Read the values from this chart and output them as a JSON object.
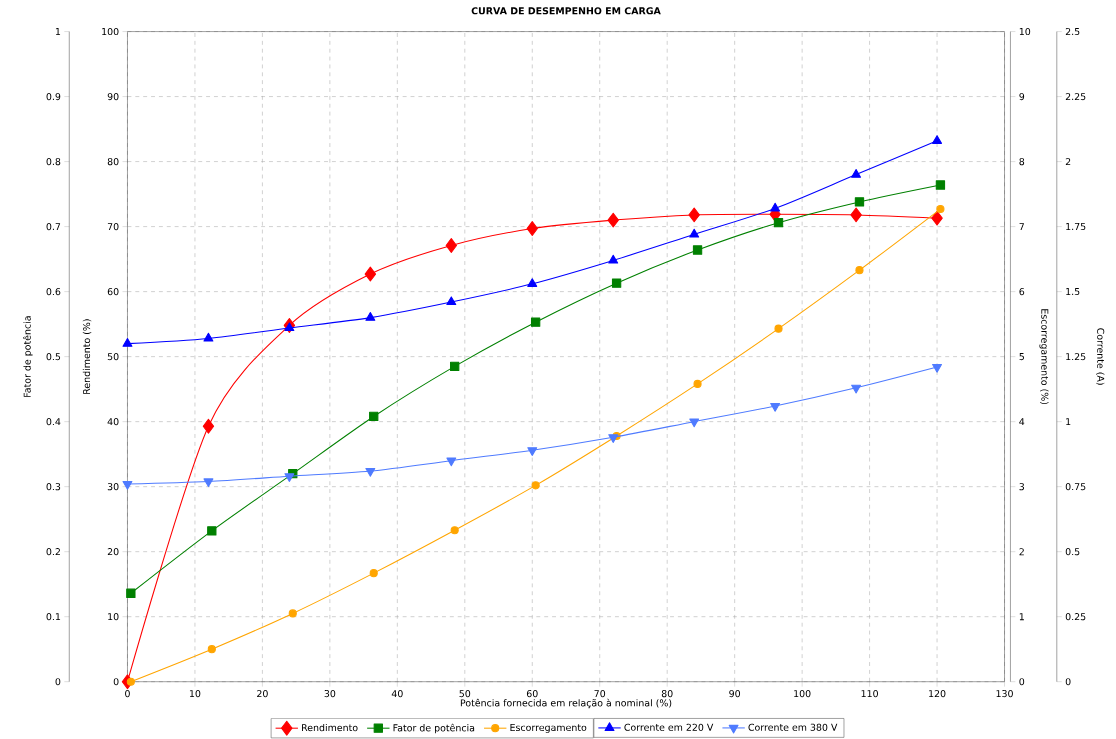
{
  "chart_data": [
    {
      "type": "line",
      "title": "CURVA DE DESEMPENHO EM CARGA",
      "xlabel": "Potência fornecida em relação à nominal (%)",
      "ylabel": "Rendimento (%)",
      "y2label": "Fator de potência",
      "y3label": "Escorregamento (%)",
      "x": [
        0,
        12,
        24,
        36,
        48,
        60,
        72,
        84,
        96,
        108,
        120
      ],
      "xlim": [
        0,
        130
      ],
      "xticks": [
        0,
        10,
        20,
        30,
        40,
        50,
        60,
        70,
        80,
        90,
        100,
        110,
        120,
        130
      ],
      "ylim": [
        0,
        100
      ],
      "yticks": [
        0,
        10,
        20,
        30,
        40,
        50,
        60,
        70,
        80,
        90,
        100
      ],
      "y2lim": [
        0,
        1
      ],
      "y2ticks": [
        0,
        0.1,
        0.2,
        0.3,
        0.4,
        0.5,
        0.6,
        0.7,
        0.8,
        0.9,
        1
      ],
      "y3lim": [
        0,
        10
      ],
      "y3ticks": [
        0,
        1,
        2,
        3,
        4,
        5,
        6,
        7,
        8,
        9,
        10
      ],
      "grid": true,
      "legend": "bottom",
      "series": [
        {
          "name": "Rendimento",
          "color": "#ff0000",
          "marker": "diamond",
          "values": [
            0,
            39.3,
            54.8,
            62.7,
            67.1,
            69.7,
            71.0,
            71.8,
            71.9,
            71.8,
            71.3
          ]
        },
        {
          "name": "Fator de potência",
          "color": "#008000",
          "marker": "square",
          "axis": "y2",
          "x": [
            0.5,
            12.5,
            24.5,
            36.5,
            48.5,
            60.5,
            72.5,
            84.5,
            96.5,
            108.5,
            120.5
          ],
          "values": [
            0.136,
            0.232,
            0.32,
            0.408,
            0.485,
            0.553,
            0.613,
            0.664,
            0.706,
            0.738,
            0.764
          ]
        },
        {
          "name": "Escorregamento",
          "color": "#ffa500",
          "marker": "circle",
          "axis": "y3",
          "x": [
            0.5,
            12.5,
            24.5,
            36.5,
            48.5,
            60.5,
            72.5,
            84.5,
            96.5,
            108.5,
            120.5
          ],
          "values": [
            0,
            0.5,
            1.05,
            1.67,
            2.33,
            3.02,
            3.78,
            4.58,
            5.43,
            6.33,
            7.27
          ]
        }
      ]
    },
    {
      "type": "line",
      "ylabel": "Corrente (A)",
      "tick_labels": "y",
      "legend": "bottom",
      "x": [
        0,
        12,
        24,
        36,
        48,
        60,
        72,
        84,
        96,
        108,
        120
      ],
      "xlim": [
        0,
        130
      ],
      "ylim": [
        0,
        2.5
      ],
      "yticks": [
        0,
        0.25,
        0.5,
        0.75,
        1,
        1.25,
        1.5,
        1.75,
        2,
        2.25,
        2.5
      ],
      "series": [
        {
          "name": "Corrente em 220 V",
          "color": "#0000ff",
          "marker": "triangle",
          "values": [
            1.3,
            1.32,
            1.36,
            1.4,
            1.46,
            1.53,
            1.62,
            1.72,
            1.82,
            1.95,
            2.08
          ]
        },
        {
          "name": "Corrente em 380 V",
          "color": "#4f7bff",
          "marker": "triangle-down",
          "values": [
            0.76,
            0.77,
            0.79,
            0.81,
            0.85,
            0.89,
            0.94,
            1.0,
            1.06,
            1.13,
            1.21
          ]
        }
      ]
    }
  ]
}
